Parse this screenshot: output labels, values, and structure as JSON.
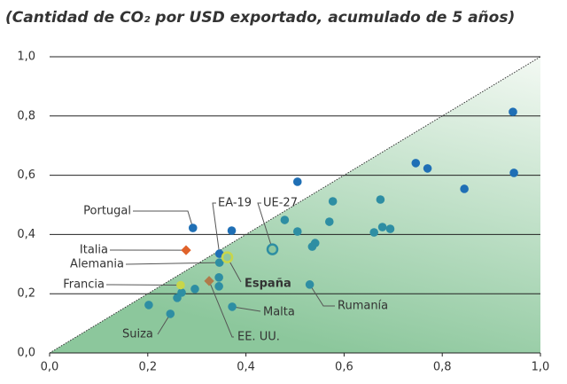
{
  "chart_data": {
    "type": "scatter",
    "subtitle": "(Cantidad de CO₂ por USD exportado, acumulado de 5 años)",
    "xlim": [
      0,
      1
    ],
    "ylim": [
      0,
      1
    ],
    "xticks": [
      {
        "value": 0,
        "label": "0,0"
      },
      {
        "value": 0.2,
        "label": "0,2"
      },
      {
        "value": 0.4,
        "label": "0,4"
      },
      {
        "value": 0.6,
        "label": "0,6"
      },
      {
        "value": 0.8,
        "label": "0,8"
      },
      {
        "value": 1,
        "label": "1,0"
      }
    ],
    "yticks": [
      {
        "value": 0,
        "label": "0,0"
      },
      {
        "value": 0.2,
        "label": "0,2"
      },
      {
        "value": 0.4,
        "label": "0,4"
      },
      {
        "value": 0.6,
        "label": "0,6"
      },
      {
        "value": 0.8,
        "label": "0,8"
      },
      {
        "value": 1,
        "label": "1,0"
      }
    ],
    "grid": true,
    "series": [
      {
        "color": "#1f6fb5",
        "x": [
          0.371,
          0.505,
          0.944,
          0.946,
          0.845,
          0.746,
          0.77
        ],
        "y": [
          0.413,
          0.578,
          0.814,
          0.608,
          0.554,
          0.641,
          0.623
        ]
      },
      {
        "color": "#2e8ea3",
        "x": [
          0.479,
          0.505,
          0.577,
          0.57,
          0.541,
          0.535,
          0.674,
          0.678,
          0.661,
          0.694,
          0.345,
          0.296,
          0.26,
          0.269,
          0.202,
          0.345
        ],
        "y": [
          0.449,
          0.41,
          0.512,
          0.443,
          0.371,
          0.359,
          0.518,
          0.425,
          0.407,
          0.419,
          0.225,
          0.216,
          0.186,
          0.204,
          0.162,
          0.255
        ]
      }
    ],
    "annotations": [
      {
        "text": "Portugal",
        "x": 0.292,
        "y": 0.422,
        "color": "#1f6fb5",
        "marker": "circle"
      },
      {
        "text": "EA-19",
        "x": 0.346,
        "y": 0.335,
        "color": "#1f6fb5",
        "marker": "circle"
      },
      {
        "text": "UE-27",
        "x": 0.454,
        "y": 0.35,
        "color": "#2e8ea3",
        "marker": "ring"
      },
      {
        "text": "Italia",
        "x": 0.278,
        "y": 0.347,
        "color": "#e0622a",
        "marker": "diamond"
      },
      {
        "text": "Alemania",
        "x": 0.346,
        "y": 0.305,
        "color": "#2e8ea3",
        "marker": "circle"
      },
      {
        "text": "Francia",
        "x": 0.267,
        "y": 0.229,
        "color": "#c8d64a",
        "marker": "circle"
      },
      {
        "text": "España",
        "x": 0.362,
        "y": 0.323,
        "color": "#c8d64a",
        "marker": "ring"
      },
      {
        "text": "EE. UU.",
        "x": 0.325,
        "y": 0.243,
        "color": "#b07a4a",
        "marker": "diamond"
      },
      {
        "text": "Malta",
        "x": 0.372,
        "y": 0.156,
        "color": "#2e8ea3",
        "marker": "circle"
      },
      {
        "text": "Suiza",
        "x": 0.246,
        "y": 0.132,
        "color": "#2e8ea3",
        "marker": "circle"
      },
      {
        "text": "Rumanía",
        "x": 0.53,
        "y": 0.231,
        "color": "#2e8ea3",
        "marker": "circle"
      }
    ]
  }
}
